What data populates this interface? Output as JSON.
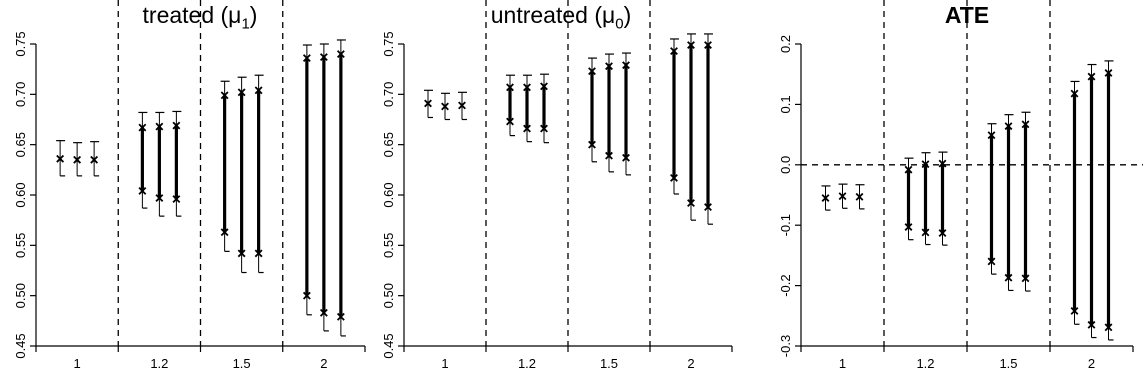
{
  "chart_data": [
    {
      "type": "interval",
      "title_prefix": "treated (μ",
      "title_sub": "1",
      "title_suffix": ")",
      "categories": [
        "1",
        "1.2",
        "1.5",
        "2"
      ],
      "ylim": [
        0.45,
        0.75
      ],
      "yticks": [
        "0.45",
        "0.50",
        "0.55",
        "0.60",
        "0.65",
        "0.70",
        "0.75"
      ],
      "hline": null,
      "groups": [
        {
          "category": "1",
          "intervals": [
            {
              "point_lo": 0.636,
              "point_hi": 0.636,
              "ci_lo": 0.619,
              "ci_hi": 0.654
            },
            {
              "point_lo": 0.635,
              "point_hi": 0.635,
              "ci_lo": 0.619,
              "ci_hi": 0.652
            },
            {
              "point_lo": 0.635,
              "point_hi": 0.635,
              "ci_lo": 0.619,
              "ci_hi": 0.653
            }
          ]
        },
        {
          "category": "1.2",
          "intervals": [
            {
              "point_lo": 0.604,
              "point_hi": 0.667,
              "ci_lo": 0.587,
              "ci_hi": 0.682
            },
            {
              "point_lo": 0.597,
              "point_hi": 0.668,
              "ci_lo": 0.579,
              "ci_hi": 0.682
            },
            {
              "point_lo": 0.596,
              "point_hi": 0.669,
              "ci_lo": 0.579,
              "ci_hi": 0.683
            }
          ]
        },
        {
          "category": "1.5",
          "intervals": [
            {
              "point_lo": 0.563,
              "point_hi": 0.699,
              "ci_lo": 0.544,
              "ci_hi": 0.713
            },
            {
              "point_lo": 0.542,
              "point_hi": 0.702,
              "ci_lo": 0.523,
              "ci_hi": 0.717
            },
            {
              "point_lo": 0.542,
              "point_hi": 0.704,
              "ci_lo": 0.523,
              "ci_hi": 0.719
            }
          ]
        },
        {
          "category": "2",
          "intervals": [
            {
              "point_lo": 0.5,
              "point_hi": 0.736,
              "ci_lo": 0.481,
              "ci_hi": 0.749
            },
            {
              "point_lo": 0.483,
              "point_hi": 0.737,
              "ci_lo": 0.465,
              "ci_hi": 0.75
            },
            {
              "point_lo": 0.479,
              "point_hi": 0.74,
              "ci_lo": 0.46,
              "ci_hi": 0.754
            }
          ]
        }
      ]
    },
    {
      "type": "interval",
      "title_prefix": "untreated (μ",
      "title_sub": "0",
      "title_suffix": ")",
      "categories": [
        "1",
        "1.2",
        "1.5",
        "2"
      ],
      "ylim": [
        0.45,
        0.75
      ],
      "yticks": [
        "0.45",
        "0.50",
        "0.55",
        "0.60",
        "0.65",
        "0.70",
        "0.75"
      ],
      "hline": null,
      "groups": [
        {
          "category": "1",
          "intervals": [
            {
              "point_lo": 0.691,
              "point_hi": 0.691,
              "ci_lo": 0.677,
              "ci_hi": 0.704
            },
            {
              "point_lo": 0.688,
              "point_hi": 0.688,
              "ci_lo": 0.675,
              "ci_hi": 0.701
            },
            {
              "point_lo": 0.689,
              "point_hi": 0.689,
              "ci_lo": 0.675,
              "ci_hi": 0.702
            }
          ]
        },
        {
          "category": "1.2",
          "intervals": [
            {
              "point_lo": 0.673,
              "point_hi": 0.707,
              "ci_lo": 0.659,
              "ci_hi": 0.719
            },
            {
              "point_lo": 0.666,
              "point_hi": 0.707,
              "ci_lo": 0.653,
              "ci_hi": 0.719
            },
            {
              "point_lo": 0.666,
              "point_hi": 0.708,
              "ci_lo": 0.652,
              "ci_hi": 0.72
            }
          ]
        },
        {
          "category": "1.5",
          "intervals": [
            {
              "point_lo": 0.65,
              "point_hi": 0.723,
              "ci_lo": 0.633,
              "ci_hi": 0.736
            },
            {
              "point_lo": 0.639,
              "point_hi": 0.728,
              "ci_lo": 0.623,
              "ci_hi": 0.74
            },
            {
              "point_lo": 0.637,
              "point_hi": 0.729,
              "ci_lo": 0.62,
              "ci_hi": 0.741
            }
          ]
        },
        {
          "category": "2",
          "intervals": [
            {
              "point_lo": 0.617,
              "point_hi": 0.743,
              "ci_lo": 0.601,
              "ci_hi": 0.755
            },
            {
              "point_lo": 0.592,
              "point_hi": 0.749,
              "ci_lo": 0.575,
              "ci_hi": 0.76
            },
            {
              "point_lo": 0.588,
              "point_hi": 0.749,
              "ci_lo": 0.571,
              "ci_hi": 0.76
            }
          ]
        }
      ]
    },
    {
      "type": "interval",
      "title_prefix": "ATE",
      "title_sub": "",
      "title_suffix": "",
      "title_bold": true,
      "categories": [
        "1",
        "1.2",
        "1.5",
        "2"
      ],
      "ylim": [
        -0.3,
        0.2
      ],
      "yticks": [
        "-0.3",
        "-0.2",
        "-0.1",
        "0.0",
        "0.1",
        "0.2"
      ],
      "hline": 0.0,
      "groups": [
        {
          "category": "1",
          "intervals": [
            {
              "point_lo": -0.055,
              "point_hi": -0.055,
              "ci_lo": -0.075,
              "ci_hi": -0.035
            },
            {
              "point_lo": -0.052,
              "point_hi": -0.052,
              "ci_lo": -0.072,
              "ci_hi": -0.032
            },
            {
              "point_lo": -0.053,
              "point_hi": -0.053,
              "ci_lo": -0.073,
              "ci_hi": -0.033
            }
          ]
        },
        {
          "category": "1.2",
          "intervals": [
            {
              "point_lo": -0.103,
              "point_hi": -0.008,
              "ci_lo": -0.124,
              "ci_hi": 0.011
            },
            {
              "point_lo": -0.112,
              "point_hi": 0.001,
              "ci_lo": -0.132,
              "ci_hi": 0.02
            },
            {
              "point_lo": -0.113,
              "point_hi": 0.002,
              "ci_lo": -0.133,
              "ci_hi": 0.021
            }
          ]
        },
        {
          "category": "1.5",
          "intervals": [
            {
              "point_lo": -0.16,
              "point_hi": 0.049,
              "ci_lo": -0.181,
              "ci_hi": 0.068
            },
            {
              "point_lo": -0.187,
              "point_hi": 0.064,
              "ci_lo": -0.208,
              "ci_hi": 0.083
            },
            {
              "point_lo": -0.188,
              "point_hi": 0.067,
              "ci_lo": -0.209,
              "ci_hi": 0.087
            }
          ]
        },
        {
          "category": "2",
          "intervals": [
            {
              "point_lo": -0.242,
              "point_hi": 0.118,
              "ci_lo": -0.264,
              "ci_hi": 0.138
            },
            {
              "point_lo": -0.265,
              "point_hi": 0.146,
              "ci_lo": -0.286,
              "ci_hi": 0.166
            },
            {
              "point_lo": -0.269,
              "point_hi": 0.152,
              "ci_lo": -0.29,
              "ci_hi": 0.172
            }
          ]
        }
      ]
    }
  ]
}
